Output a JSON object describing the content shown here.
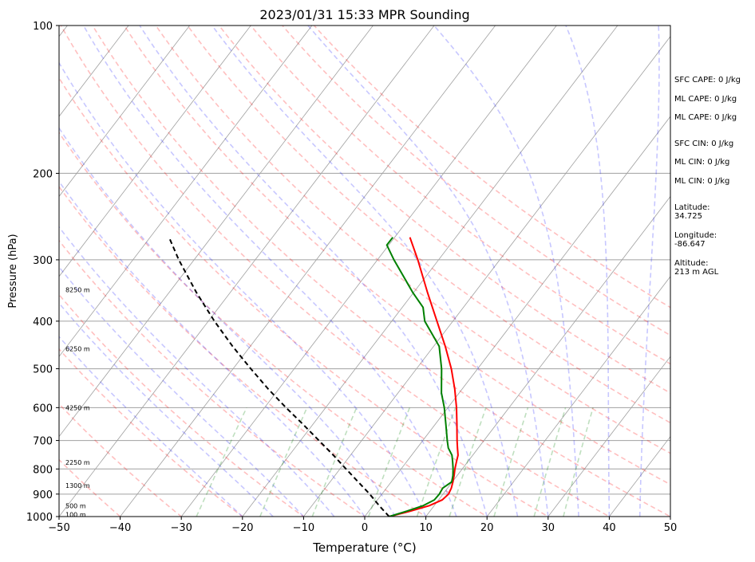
{
  "chart_data": {
    "type": "line",
    "title": "2023/01/31 15:33 MPR Sounding",
    "xlabel": "Temperature (°C)",
    "ylabel": "Pressure (hPa)",
    "xlim": [
      -50,
      50
    ],
    "ylim": [
      1000,
      100
    ],
    "y_scale": "log",
    "skew": "skew-T log-P",
    "grid": true,
    "x_ticks": [
      "−50",
      "−40",
      "−30",
      "−20",
      "−10",
      "0",
      "10",
      "20",
      "30",
      "40",
      "50"
    ],
    "x_tick_values": [
      -50,
      -40,
      -30,
      -20,
      -10,
      0,
      10,
      20,
      30,
      40,
      50
    ],
    "y_ticks": [
      "100",
      "200",
      "300",
      "400",
      "500",
      "600",
      "700",
      "800",
      "900",
      "1000"
    ],
    "y_tick_values": [
      100,
      200,
      300,
      400,
      500,
      600,
      700,
      800,
      900,
      1000
    ],
    "series": [
      {
        "role": "temperature",
        "color": "#ff0000",
        "points": [
          [
            1000,
            4.0
          ],
          [
            975,
            6.8
          ],
          [
            950,
            9.2
          ],
          [
            925,
            10.6
          ],
          [
            900,
            10.9
          ],
          [
            875,
            10.6
          ],
          [
            850,
            10.1
          ],
          [
            825,
            9.5
          ],
          [
            800,
            8.8
          ],
          [
            775,
            8.2
          ],
          [
            750,
            7.6
          ],
          [
            725,
            6.6
          ],
          [
            700,
            5.6
          ],
          [
            650,
            3.6
          ],
          [
            600,
            1.4
          ],
          [
            550,
            -1.2
          ],
          [
            500,
            -4.3
          ],
          [
            450,
            -8.1
          ],
          [
            400,
            -12.6
          ],
          [
            350,
            -17.7
          ],
          [
            300,
            -23.4
          ],
          [
            270,
            -27.5
          ]
        ]
      },
      {
        "role": "dewpoint",
        "color": "#008000",
        "points": [
          [
            1000,
            4.0
          ],
          [
            975,
            6.2
          ],
          [
            950,
            8.2
          ],
          [
            925,
            9.3
          ],
          [
            900,
            9.4
          ],
          [
            875,
            9.2
          ],
          [
            850,
            9.9
          ],
          [
            825,
            9.3
          ],
          [
            800,
            8.5
          ],
          [
            775,
            7.6
          ],
          [
            750,
            6.6
          ],
          [
            725,
            5.1
          ],
          [
            700,
            4.0
          ],
          [
            650,
            1.8
          ],
          [
            600,
            -0.6
          ],
          [
            560,
            -2.9
          ],
          [
            500,
            -5.9
          ],
          [
            450,
            -9.1
          ],
          [
            400,
            -14.6
          ],
          [
            375,
            -16.6
          ],
          [
            350,
            -20.1
          ],
          [
            300,
            -27.3
          ],
          [
            280,
            -30.3
          ],
          [
            270,
            -30.3
          ]
        ]
      },
      {
        "role": "parcel",
        "color": "#000000",
        "style": "dashed",
        "points": [
          [
            1000,
            4.0
          ],
          [
            950,
            1.0
          ],
          [
            900,
            -2.0
          ],
          [
            850,
            -5.4
          ],
          [
            800,
            -9.0
          ],
          [
            750,
            -12.8
          ],
          [
            700,
            -17.0
          ],
          [
            650,
            -21.5
          ],
          [
            600,
            -26.5
          ],
          [
            550,
            -31.7
          ],
          [
            500,
            -37.1
          ],
          [
            450,
            -42.9
          ],
          [
            400,
            -49.0
          ],
          [
            350,
            -55.5
          ],
          [
            300,
            -62.5
          ],
          [
            270,
            -66.9
          ]
        ]
      }
    ],
    "background_lines": [
      {
        "role": "isotherms",
        "color": "#a0a0a0"
      },
      {
        "role": "dry_adiabats",
        "color": "#ff0000",
        "style": "dashed"
      },
      {
        "role": "moist_adiabats",
        "color": "#0000ff",
        "style": "dashed"
      },
      {
        "role": "mixing_ratio_lines",
        "color": "#008000",
        "style": "dashed"
      }
    ],
    "height_labels": [
      {
        "text": "100 m",
        "p": 990
      },
      {
        "text": "500 m",
        "p": 950
      },
      {
        "text": "1300 m",
        "p": 865
      },
      {
        "text": "2250 m",
        "p": 775
      },
      {
        "text": "4250 m",
        "p": 600
      },
      {
        "text": "6250 m",
        "p": 455
      },
      {
        "text": "8250 m",
        "p": 345
      }
    ]
  },
  "info": {
    "sfc_cape": "SFC CAPE: 0 J/kg",
    "ml_cape_1": "ML CAPE: 0 J/kg",
    "ml_cape_2": "ML CAPE: 0 J/kg",
    "sfc_cin": "SFC CIN: 0 J/kg",
    "ml_cin_1": "ML CIN: 0 J/kg",
    "ml_cin_2": "ML CIN: 0 J/kg",
    "latitude": "Latitude:\n34.725",
    "longitude": "Longitude:\n-86.647",
    "altitude": "Altitude:\n213 m AGL"
  }
}
